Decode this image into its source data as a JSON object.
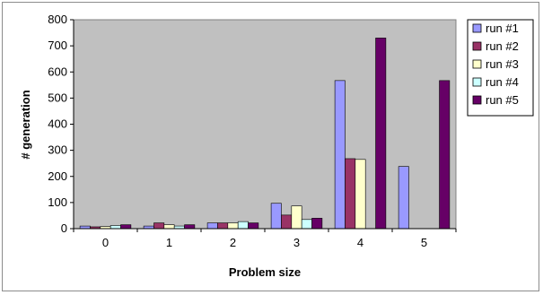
{
  "chart_data": {
    "type": "bar",
    "title": "",
    "xlabel": "Problem size",
    "ylabel": "# generation",
    "categories": [
      "0",
      "1",
      "2",
      "3",
      "4",
      "5"
    ],
    "ylim": [
      0,
      800
    ],
    "yticks": [
      0,
      100,
      200,
      300,
      400,
      500,
      600,
      700,
      800
    ],
    "grid": false,
    "legend_position": "right",
    "plot_background": "#c0c0c0",
    "series": [
      {
        "name": "run #1",
        "color": "#9999ff",
        "values": [
          10,
          10,
          22,
          97,
          567,
          238
        ]
      },
      {
        "name": "run #2",
        "color": "#993366",
        "values": [
          7,
          22,
          22,
          52,
          268,
          0
        ]
      },
      {
        "name": "run #3",
        "color": "#ffffcc",
        "values": [
          8,
          15,
          22,
          87,
          265,
          0
        ]
      },
      {
        "name": "run #4",
        "color": "#ccffff",
        "values": [
          12,
          10,
          27,
          35,
          0,
          0
        ]
      },
      {
        "name": "run #5",
        "color": "#660066",
        "values": [
          15,
          15,
          22,
          40,
          730,
          567
        ]
      }
    ]
  }
}
